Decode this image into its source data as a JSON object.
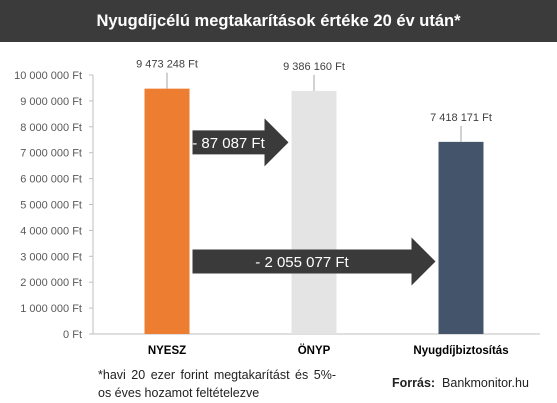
{
  "chart_data": {
    "type": "bar",
    "title": "Nyugdíjcélú megtakarítások értéke 20 év után*",
    "categories": [
      "NYESZ",
      "ÖNYP",
      "Nyugdíjbiztosítás"
    ],
    "values": [
      9473248,
      9386160,
      7418171
    ],
    "value_labels": [
      "9 473 248 Ft",
      "9 386 160 Ft",
      "7 418 171 Ft"
    ],
    "colors": [
      "#ED7D31",
      "#E4E4E4",
      "#44546A"
    ],
    "ylim": [
      0,
      10000000
    ],
    "y_ticks": [
      0,
      1000000,
      2000000,
      3000000,
      4000000,
      5000000,
      6000000,
      7000000,
      8000000,
      9000000,
      10000000
    ],
    "y_tick_labels": [
      "0 Ft",
      "1 000 000 Ft",
      "2 000 000 Ft",
      "3 000 000 Ft",
      "4 000 000 Ft",
      "5 000 000 Ft",
      "6 000 000 Ft",
      "7 000 000 Ft",
      "8 000 000 Ft",
      "9 000 000 Ft",
      "10 000 000 Ft"
    ],
    "grid": false,
    "annotations": [
      {
        "text": "- 87 087 Ft",
        "from": "NYESZ",
        "to": "ÖNYP",
        "level": 7400000
      },
      {
        "text": "- 2 055 077 Ft",
        "from": "NYESZ",
        "to": "Nyugdíjbiztosítás",
        "level": 2800000
      }
    ],
    "annotation_color": "#3A3A3A"
  },
  "footnote": "*havi 20 ezer forint megtakarítást és 5%-os éves hozamot feltételezve",
  "source": {
    "label": "Forrás:",
    "text": "Bankmonitor.hu"
  }
}
